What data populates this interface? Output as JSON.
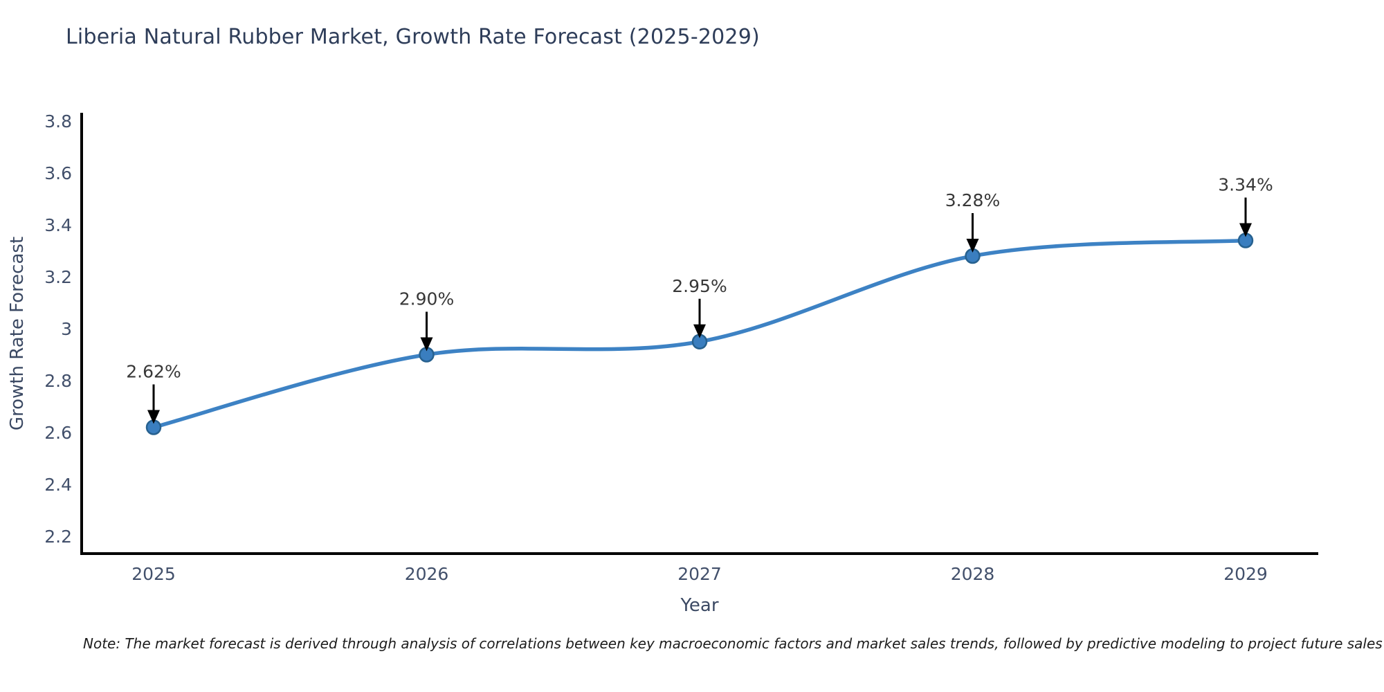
{
  "title": "Liberia Natural Rubber Market, Growth Rate Forecast (2025-2029)",
  "note": "Note: The market forecast is derived through analysis of correlations between key macroeconomic factors and market sales trends, followed by predictive modeling to project future sales",
  "chart_data": {
    "type": "line",
    "title": "Liberia Natural Rubber Market, Growth Rate Forecast (2025-2029)",
    "xlabel": "Year",
    "ylabel": "Growth Rate Forecast",
    "categories": [
      "2025",
      "2026",
      "2027",
      "2028",
      "2029"
    ],
    "series": [
      {
        "name": "Growth Rate Forecast",
        "values": [
          2.62,
          2.9,
          2.95,
          3.28,
          3.34
        ]
      }
    ],
    "point_labels": [
      "2.62%",
      "2.90%",
      "2.95%",
      "3.28%",
      "3.34%"
    ],
    "ylim": [
      2.2,
      3.8
    ],
    "yticks": [
      2.2,
      2.4,
      2.6,
      2.8,
      3.0,
      3.2,
      3.4,
      3.6,
      3.8
    ],
    "ytick_labels": [
      "2.2",
      "2.4",
      "2.6",
      "2.8",
      "3",
      "3.2",
      "3.4",
      "3.6",
      "3.8"
    ],
    "grid": false,
    "legend": "none",
    "line_style": "smooth-spline",
    "marker": "circle",
    "annotations": "black down-arrow pointing at each marker with value label above",
    "colors": {
      "line": "#3d82c4",
      "marker_fill": "#3a7ebf",
      "marker_edge": "#27618f",
      "arrow": "#000000",
      "axis_spine": "#000000",
      "title_text": "#2e3d59",
      "tick_text": "#42506b",
      "axis_label_text": "#3b4963",
      "value_label_text": "#383838",
      "background": "#ffffff"
    }
  }
}
